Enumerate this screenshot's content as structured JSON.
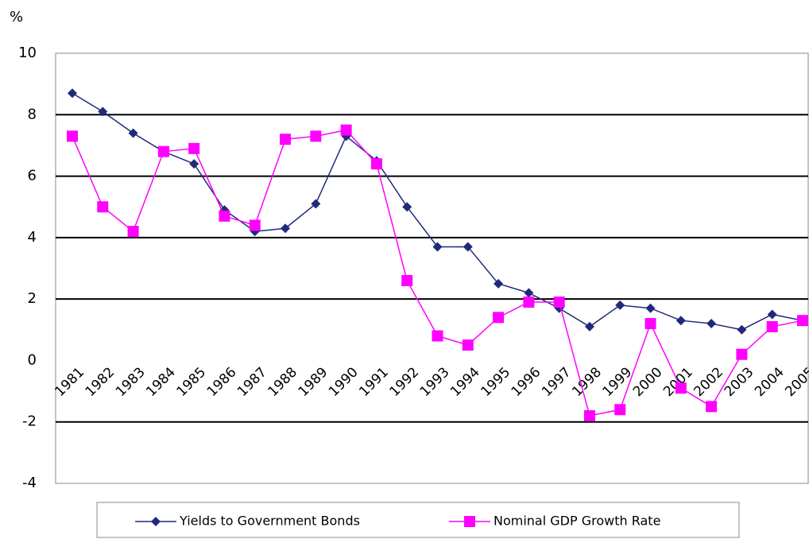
{
  "chart_data": {
    "type": "line",
    "y_label": "%",
    "categories": [
      "1981",
      "1982",
      "1983",
      "1984",
      "1985",
      "1986",
      "1987",
      "1988",
      "1989",
      "1990",
      "1991",
      "1992",
      "1993",
      "1994",
      "1995",
      "1996",
      "1997",
      "1998",
      "1999",
      "2000",
      "2001",
      "2002",
      "2003",
      "2004",
      "2005"
    ],
    "series": [
      {
        "name": "Yields to Government Bonds",
        "color": "#1f2a7a",
        "marker": "diamond",
        "values": [
          8.7,
          8.1,
          7.4,
          6.8,
          6.4,
          4.9,
          4.2,
          4.3,
          5.1,
          7.3,
          6.5,
          5.0,
          3.7,
          3.7,
          2.5,
          2.2,
          1.7,
          1.1,
          1.8,
          1.7,
          1.3,
          1.2,
          1.0,
          1.5,
          1.3
        ]
      },
      {
        "name": "Nominal GDP Growth Rate",
        "color": "#ff00ff",
        "marker": "square",
        "values": [
          7.3,
          5.0,
          4.2,
          6.8,
          6.9,
          4.7,
          4.4,
          7.2,
          7.3,
          7.5,
          6.4,
          2.6,
          0.8,
          0.5,
          1.4,
          1.9,
          1.9,
          -1.8,
          -1.6,
          1.2,
          -0.9,
          -1.5,
          0.2,
          1.1,
          1.3
        ]
      }
    ],
    "ylim": [
      -4,
      10
    ],
    "yticks": [
      -4,
      -2,
      0,
      2,
      4,
      6,
      8,
      10
    ],
    "grid": true
  }
}
